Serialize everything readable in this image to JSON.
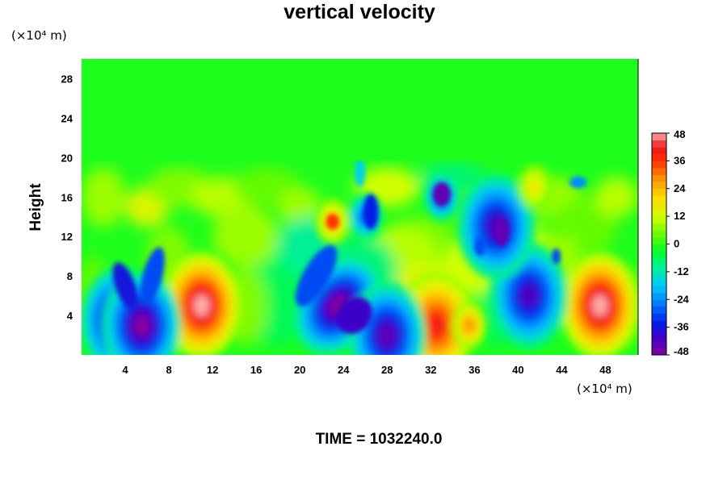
{
  "chart_data": {
    "type": "heatmap",
    "title": "vertical velocity",
    "ylabel": "Height",
    "xlabel": "",
    "x_unit": "(×10⁴ m)",
    "y_unit": "(×10⁴ m)",
    "time_label": "TIME = 1032240.0",
    "xlim": [
      0,
      51
    ],
    "ylim": [
      0,
      30
    ],
    "x_ticks": [
      4,
      8,
      12,
      16,
      20,
      24,
      28,
      32,
      36,
      40,
      44,
      48
    ],
    "y_ticks": [
      4,
      8,
      12,
      16,
      20,
      24,
      28
    ],
    "colorbar": {
      "range": [
        -48,
        48
      ],
      "ticks": [
        48,
        36,
        24,
        12,
        0,
        -12,
        -24,
        -36,
        -48
      ]
    },
    "features": [
      {
        "x": 11,
        "y": 5,
        "value": 48
      },
      {
        "x": 47.5,
        "y": 5,
        "value": 48
      },
      {
        "x": 32.5,
        "y": 3,
        "value": 40
      },
      {
        "x": 35.5,
        "y": 3,
        "value": 30
      },
      {
        "x": 3.5,
        "y": 3.5,
        "value": -48
      },
      {
        "x": 5.5,
        "y": 3,
        "value": -48
      },
      {
        "x": 23.5,
        "y": 5,
        "value": -48
      },
      {
        "x": 28,
        "y": 2,
        "value": -44
      },
      {
        "x": 41,
        "y": 6,
        "value": -42
      },
      {
        "x": 33,
        "y": 16,
        "value": -36
      },
      {
        "x": 38,
        "y": 13,
        "value": -42
      },
      {
        "x": 26,
        "y": 14,
        "value": -30
      },
      {
        "x": 23,
        "y": 13.5,
        "value": 24
      },
      {
        "x": 41.5,
        "y": 17,
        "value": 18
      }
    ]
  }
}
